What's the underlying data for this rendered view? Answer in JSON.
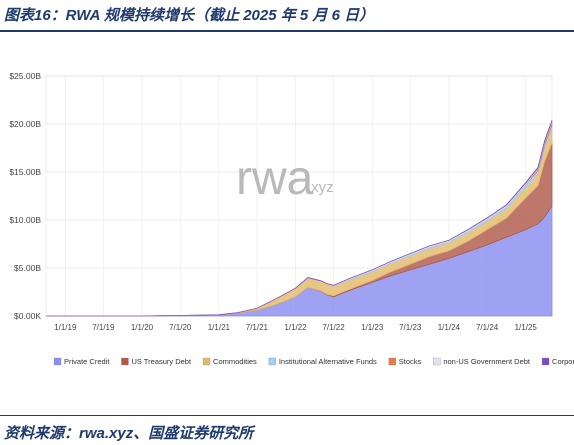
{
  "figure": {
    "title": "图表16：RWA 规模持续增长（截止 2025 年 5 月 6 日）",
    "source": "资料来源：rwa.xyz、国盛证券研究所"
  },
  "watermark": {
    "main": "rwa",
    "suffix": ".xyz"
  },
  "chart_data": {
    "type": "area",
    "stacked": true,
    "title": "",
    "xlabel": "",
    "ylabel": "",
    "ylim": [
      0,
      25
    ],
    "unit": "B",
    "y_ticks": [
      "$0.00K",
      "$5.00B",
      "$10.00B",
      "$15.00B",
      "$20.00B",
      "$25.00B"
    ],
    "y_tick_values": [
      0,
      5,
      10,
      15,
      20,
      25
    ],
    "x_range": [
      "2018-10-01",
      "2025-05-06"
    ],
    "x_ticks": [
      "1/1/19",
      "7/1/19",
      "1/1/20",
      "7/1/20",
      "1/1/21",
      "7/1/21",
      "1/1/22",
      "7/1/22",
      "1/1/23",
      "7/1/23",
      "1/1/24",
      "7/1/24",
      "1/1/25"
    ],
    "x_tick_dates": [
      "2019-01-01",
      "2019-07-01",
      "2020-01-01",
      "2020-07-01",
      "2021-01-01",
      "2021-07-01",
      "2022-01-01",
      "2022-07-01",
      "2023-01-01",
      "2023-07-01",
      "2024-01-01",
      "2024-07-01",
      "2025-01-01"
    ],
    "legend_position": "bottom",
    "grid": true,
    "x": [
      "2018-10-01",
      "2019-01-01",
      "2019-07-01",
      "2020-01-01",
      "2020-07-01",
      "2021-01-01",
      "2021-04-01",
      "2021-07-01",
      "2021-10-01",
      "2022-01-01",
      "2022-03-01",
      "2022-05-01",
      "2022-06-01",
      "2022-07-01",
      "2022-10-01",
      "2023-01-01",
      "2023-04-01",
      "2023-07-01",
      "2023-10-01",
      "2024-01-01",
      "2024-04-01",
      "2024-07-01",
      "2024-10-01",
      "2025-01-01",
      "2025-03-01",
      "2025-04-01",
      "2025-05-06"
    ],
    "series": [
      {
        "name": "Private Credit",
        "color": "#8a8ef0",
        "values": [
          0,
          0,
          0,
          0,
          0.05,
          0.1,
          0.3,
          0.6,
          1.2,
          2.0,
          3.0,
          2.6,
          2.2,
          2.0,
          2.8,
          3.5,
          4.2,
          4.8,
          5.4,
          6.0,
          6.7,
          7.4,
          8.2,
          9.0,
          9.6,
          10.3,
          11.5
        ]
      },
      {
        "name": "US Treasury Debt",
        "color": "#b05a4a",
        "values": [
          0,
          0,
          0,
          0,
          0,
          0,
          0,
          0,
          0,
          0,
          0,
          0.02,
          0.05,
          0.1,
          0.12,
          0.2,
          0.4,
          0.6,
          0.8,
          0.8,
          1.1,
          1.6,
          2.0,
          3.3,
          4.0,
          5.8,
          6.5
        ]
      },
      {
        "name": "Commodities",
        "color": "#e3b96a",
        "values": [
          0,
          0,
          0,
          0,
          0,
          0.02,
          0.05,
          0.2,
          0.6,
          0.9,
          1.0,
          1.05,
          1.1,
          1.0,
          0.95,
          0.9,
          0.9,
          0.85,
          0.85,
          0.85,
          0.9,
          0.9,
          1.0,
          1.1,
          1.2,
          1.3,
          1.4
        ]
      },
      {
        "name": "Institutional Alternative Funds",
        "color": "#9fd0f0",
        "values": [
          0,
          0,
          0,
          0,
          0,
          0,
          0,
          0,
          0,
          0,
          0,
          0,
          0,
          0.05,
          0.1,
          0.1,
          0.1,
          0.15,
          0.15,
          0.15,
          0.2,
          0.2,
          0.25,
          0.3,
          0.35,
          0.4,
          0.45
        ]
      },
      {
        "name": "Stocks",
        "color": "#ee7744",
        "values": [
          0,
          0,
          0,
          0,
          0,
          0,
          0,
          0,
          0,
          0,
          0,
          0,
          0,
          0,
          0,
          0,
          0,
          0,
          0,
          0,
          0,
          0,
          0,
          0.05,
          0.2,
          0.3,
          0.4
        ]
      },
      {
        "name": "non-US Government Debt",
        "color": "#e6e1f0",
        "values": [
          0,
          0,
          0,
          0,
          0,
          0,
          0,
          0,
          0,
          0,
          0,
          0,
          0,
          0.05,
          0.08,
          0.1,
          0.1,
          0.1,
          0.1,
          0.1,
          0.1,
          0.1,
          0.1,
          0.1,
          0.1,
          0.1,
          0.1
        ]
      },
      {
        "name": "Corporate Bonds",
        "color": "#7a4fb8",
        "values": [
          0,
          0,
          0,
          0,
          0,
          0,
          0,
          0,
          0,
          0,
          0,
          0,
          0,
          0,
          0,
          0,
          0,
          0,
          0,
          0,
          0,
          0.02,
          0.03,
          0.05,
          0.05,
          0.05,
          0.05
        ]
      }
    ]
  }
}
